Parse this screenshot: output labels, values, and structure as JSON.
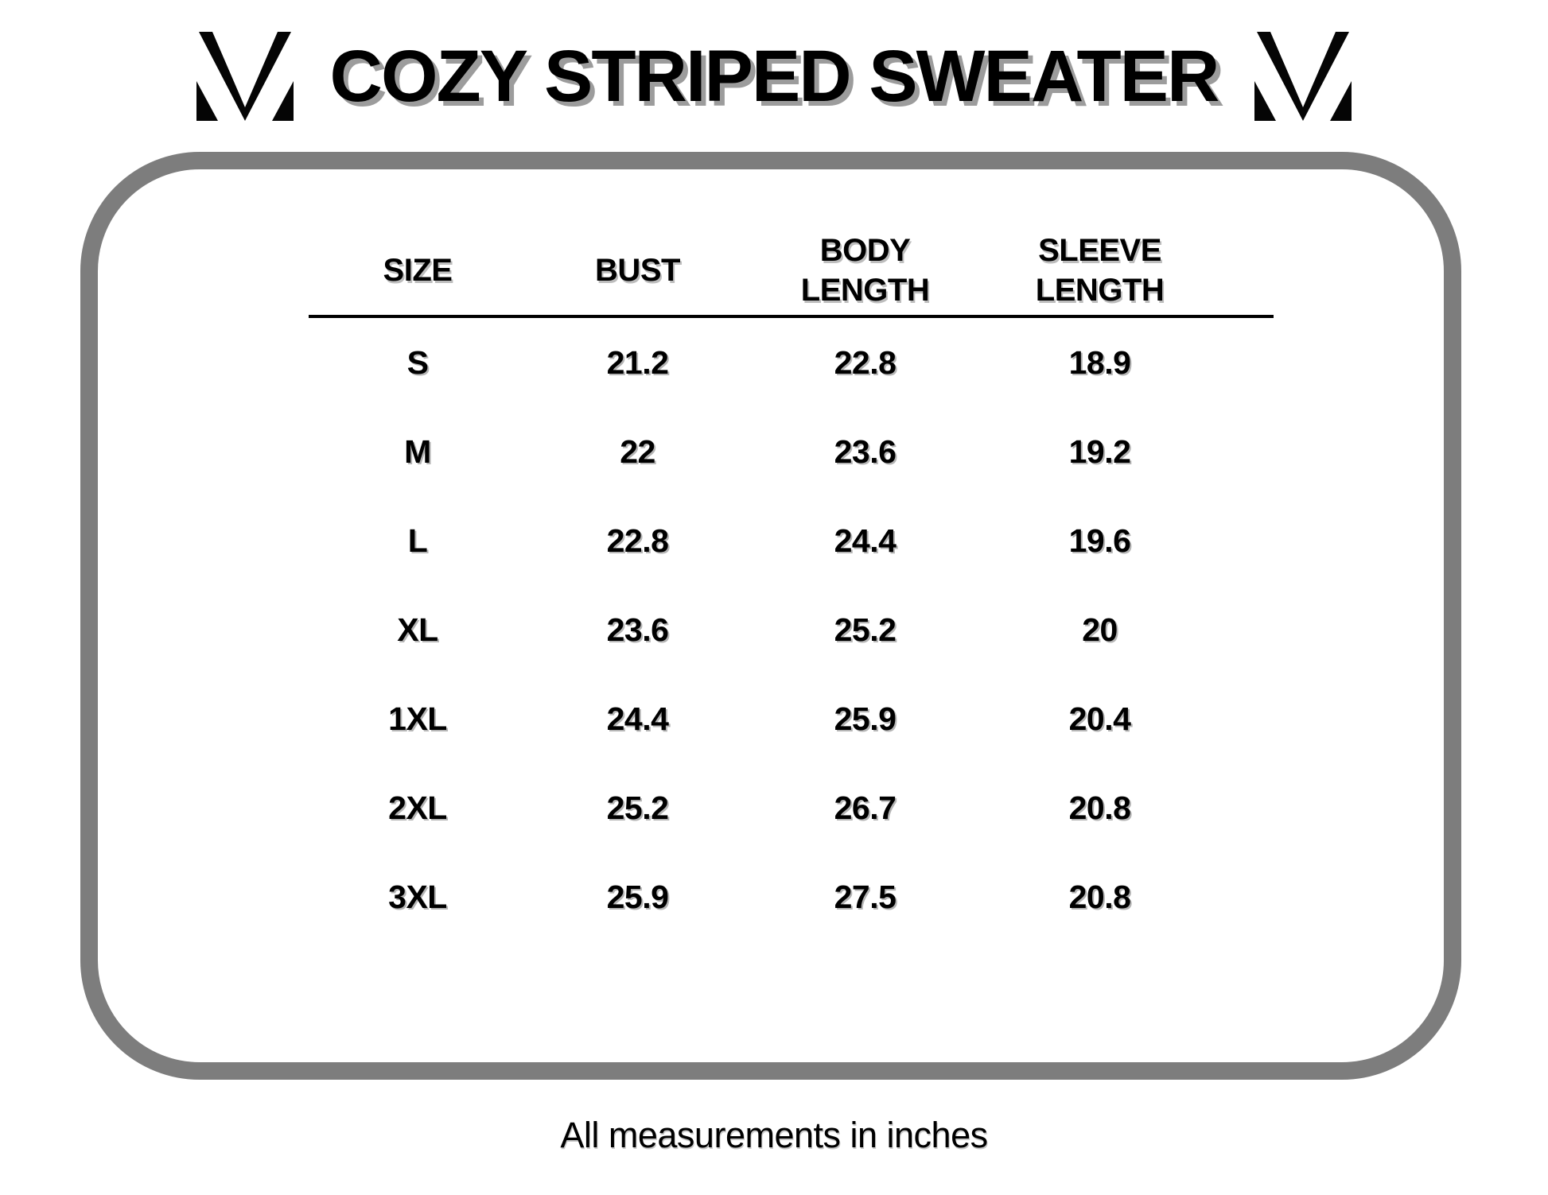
{
  "header": {
    "title": "COZY STRIPED SWEATER",
    "logo": "mv-monogram-icon"
  },
  "size_chart": {
    "columns": [
      "SIZE",
      "BUST",
      "BODY LENGTH",
      "SLEEVE LENGTH"
    ],
    "column_keys": [
      "size",
      "bust",
      "body_length",
      "sleeve_length"
    ],
    "rows": [
      {
        "size": "S",
        "bust": "21.2",
        "body_length": "22.8",
        "sleeve_length": "18.9"
      },
      {
        "size": "M",
        "bust": "22",
        "body_length": "23.6",
        "sleeve_length": "19.2"
      },
      {
        "size": "L",
        "bust": "22.8",
        "body_length": "24.4",
        "sleeve_length": "19.6"
      },
      {
        "size": "XL",
        "bust": "23.6",
        "body_length": "25.2",
        "sleeve_length": "20"
      },
      {
        "size": "1XL",
        "bust": "24.4",
        "body_length": "25.9",
        "sleeve_length": "20.4"
      },
      {
        "size": "2XL",
        "bust": "25.2",
        "body_length": "26.7",
        "sleeve_length": "20.8"
      },
      {
        "size": "3XL",
        "bust": "25.9",
        "body_length": "27.5",
        "sleeve_length": "20.8"
      }
    ]
  },
  "footer": {
    "note": "All measurements in inches"
  },
  "colors": {
    "background": "#ffffff",
    "text": "#000000",
    "frame_border": "#7d7d7d",
    "title_shadow": "#9c9c9c"
  }
}
